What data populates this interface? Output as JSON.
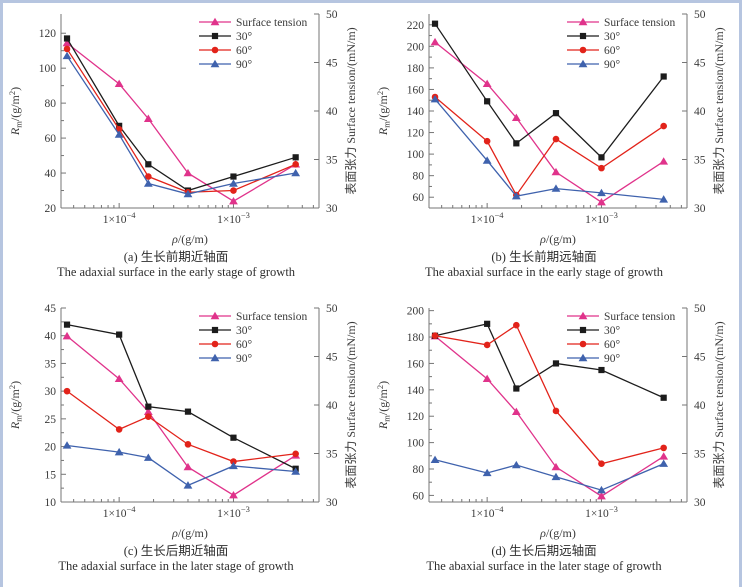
{
  "page": {
    "frame_color": "#b6c5e0",
    "background": "#ffffff"
  },
  "chart_data": {
    "type": "line",
    "x_scale": "log",
    "xlabel_symbol": "ρ",
    "xlabel_rest": "/(g/m)",
    "x_values": [
      3.5e-05,
      0.0001,
      0.00018,
      0.0004,
      0.001,
      0.0035
    ],
    "x_range": [
      3.1e-05,
      0.0056
    ],
    "x_major_ticks": [
      {
        "value": 0.0001,
        "base": "1×10",
        "exp": "−4",
        "display": "1×10⁻⁴"
      },
      {
        "value": 0.001,
        "base": "1×10",
        "exp": "−3",
        "display": "1×10⁻³"
      }
    ],
    "left_axis_label": {
      "main": "R",
      "sub": "m",
      "unit": "/(g/m",
      "sup": "2",
      "close": ")",
      "display": "Rm/(g/m²)"
    },
    "right_axis": {
      "label": "表面张力 Surface tension/(mN/m)",
      "ticks": [
        30,
        35,
        40,
        45,
        50
      ],
      "range": [
        30,
        50
      ]
    },
    "legend": [
      {
        "key": "st",
        "label": "Surface tension",
        "marker": "triangle"
      },
      {
        "key": "d30",
        "label": "30°",
        "marker": "square"
      },
      {
        "key": "d60",
        "label": "60°",
        "marker": "circle"
      },
      {
        "key": "d90",
        "label": "90°",
        "marker": "triangle"
      }
    ],
    "colors": {
      "st": "#e0338b",
      "d30": "#1c1c1c",
      "d60": "#e2231a",
      "d90": "#3f62ad",
      "axis": "#757575",
      "text": "#3a3a3a"
    },
    "panels": [
      {
        "id": "a",
        "caption_cn": "(a) 生长前期近轴面",
        "caption_en": "The adaxial surface in the early stage of growth",
        "left_axis": {
          "ticks": [
            20,
            40,
            60,
            80,
            100,
            120
          ],
          "range": [
            20,
            131
          ]
        },
        "series": {
          "d30": [
            117,
            67,
            45,
            30,
            38,
            49
          ],
          "d60": [
            111,
            65,
            38,
            29,
            30,
            45
          ],
          "d90": [
            107,
            62,
            34,
            28,
            34,
            40
          ],
          "st": [
            47.0,
            42.8,
            39.2,
            33.6,
            30.7,
            34.5
          ]
        }
      },
      {
        "id": "b",
        "caption_cn": "(b) 生长前期远轴面",
        "caption_en": "The abaxial surface in the early stage of growth",
        "left_axis": {
          "ticks": [
            60,
            80,
            100,
            120,
            140,
            160,
            180,
            200,
            220
          ],
          "range": [
            50,
            230
          ]
        },
        "series": {
          "d30": [
            221,
            149,
            110,
            138,
            97,
            172
          ],
          "d60": [
            153,
            112,
            62,
            114,
            87,
            126
          ],
          "d90": [
            151,
            94,
            61,
            68,
            64,
            58
          ],
          "st": [
            47.1,
            42.8,
            39.3,
            33.7,
            30.6,
            34.8
          ]
        }
      },
      {
        "id": "c",
        "caption_cn": "(c) 生长后期近轴面",
        "caption_en": "The adaxial surface in the later stage of growth",
        "left_axis": {
          "ticks": [
            10,
            15,
            20,
            25,
            30,
            35,
            40,
            45
          ],
          "range": [
            10,
            45
          ]
        },
        "series": {
          "d30": [
            42,
            40.2,
            27.2,
            26.3,
            21.6,
            16
          ],
          "d60": [
            30,
            23.1,
            25.4,
            20.4,
            17.3,
            18.7
          ],
          "d90": [
            20.2,
            19,
            18,
            13,
            16.5,
            15.5
          ],
          "st": [
            47.1,
            42.7,
            39.3,
            33.6,
            30.7,
            34.8
          ]
        }
      },
      {
        "id": "d",
        "caption_cn": "(d) 生长后期远轴面",
        "caption_en": "The abaxial surface in the later stage of growth",
        "left_axis": {
          "ticks": [
            60,
            80,
            100,
            120,
            140,
            160,
            180,
            200
          ],
          "range": [
            55,
            202
          ]
        },
        "series": {
          "d30": [
            181,
            190,
            141,
            160,
            155,
            134
          ],
          "d60": [
            181,
            174,
            189,
            124,
            84,
            96
          ],
          "d90": [
            87,
            77,
            83,
            74,
            64,
            84
          ],
          "st": [
            47.1,
            42.7,
            39.3,
            33.6,
            30.6,
            34.7
          ]
        }
      }
    ]
  }
}
